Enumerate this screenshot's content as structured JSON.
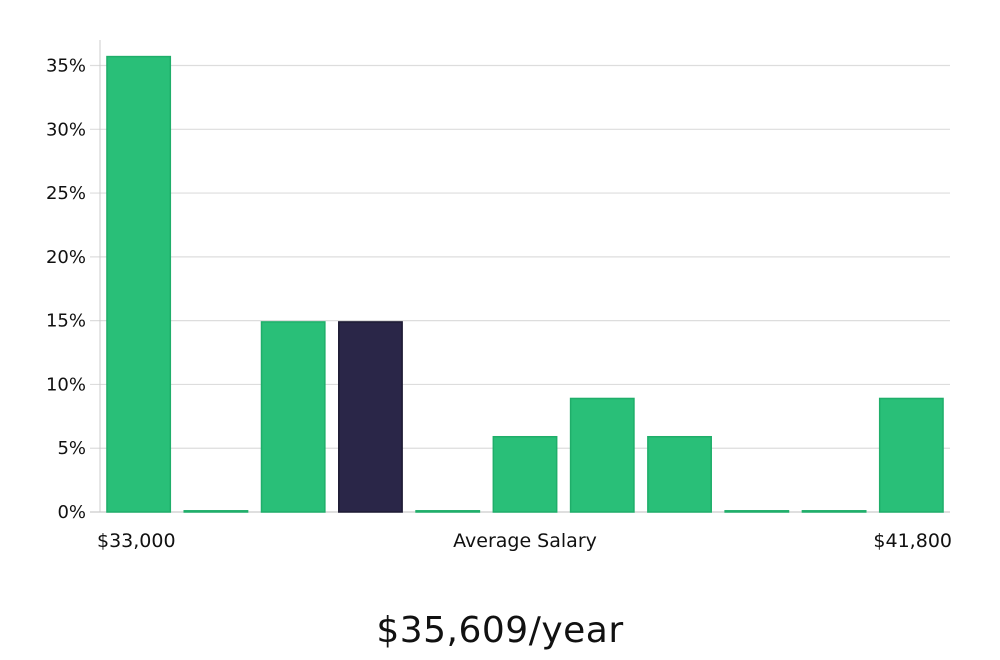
{
  "chart_data": {
    "type": "bar",
    "title": "",
    "xlabel": "Average Salary",
    "ylabel": "",
    "x_range_labels": {
      "min": "$33,000",
      "max": "$41,800"
    },
    "y_ticks": [
      "0%",
      "5%",
      "10%",
      "15%",
      "20%",
      "25%",
      "30%",
      "35%"
    ],
    "ylim": [
      0,
      37
    ],
    "grid": true,
    "values": [
      35.7,
      0,
      14.9,
      14.9,
      0,
      5.9,
      8.9,
      5.9,
      0,
      0,
      8.9
    ],
    "highlight_index": 3,
    "colors": {
      "bar": "#29bf78",
      "bar_edge": "#1fae6a",
      "highlight": "#2a2648",
      "grid": "#dddddd",
      "axis": "#cccccc"
    }
  },
  "summary": {
    "salary_per_year": "$35,609/year"
  }
}
